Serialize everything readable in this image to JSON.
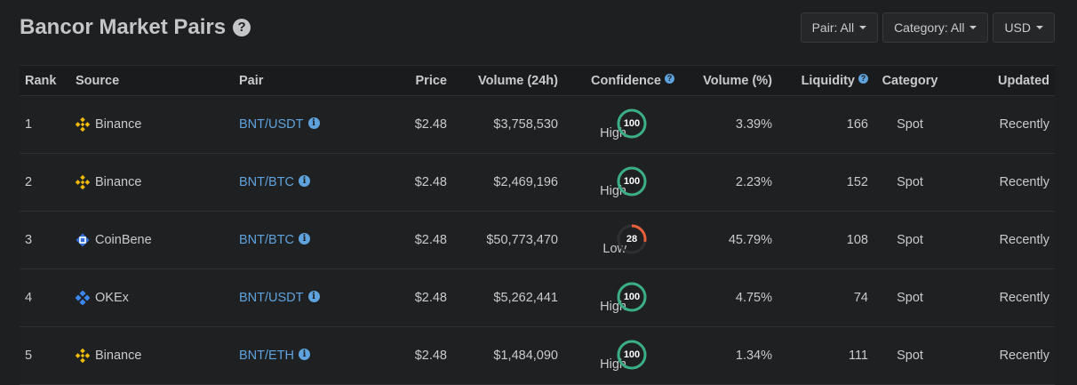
{
  "page": {
    "title": "Bancor Market Pairs",
    "help_glyph": "?"
  },
  "filters": {
    "pair": "Pair: All",
    "category": "Category: All",
    "currency": "USD"
  },
  "columns": {
    "rank": "Rank",
    "source": "Source",
    "pair": "Pair",
    "price": "Price",
    "volume": "Volume (24h)",
    "confidence": "Confidence",
    "volume_pct": "Volume (%)",
    "liquidity": "Liquidity",
    "category": "Category",
    "updated": "Updated"
  },
  "rows": [
    {
      "rank": "1",
      "source": "Binance",
      "source_icon": "binance-icon",
      "pair": "BNT/USDT",
      "price": "$2.48",
      "volume": "$3,758,530",
      "confidence_label": "High",
      "confidence_score": "100",
      "confidence_value": 100,
      "volume_pct": "3.39%",
      "liquidity": "166",
      "category": "Spot",
      "updated": "Recently"
    },
    {
      "rank": "2",
      "source": "Binance",
      "source_icon": "binance-icon",
      "pair": "BNT/BTC",
      "price": "$2.48",
      "volume": "$2,469,196",
      "confidence_label": "High",
      "confidence_score": "100",
      "confidence_value": 100,
      "volume_pct": "2.23%",
      "liquidity": "152",
      "category": "Spot",
      "updated": "Recently"
    },
    {
      "rank": "3",
      "source": "CoinBene",
      "source_icon": "coinbene-icon",
      "pair": "BNT/BTC",
      "price": "$2.48",
      "volume": "$50,773,470",
      "confidence_label": "Low",
      "confidence_score": "28",
      "confidence_value": 28,
      "volume_pct": "45.79%",
      "liquidity": "108",
      "category": "Spot",
      "updated": "Recently"
    },
    {
      "rank": "4",
      "source": "OKEx",
      "source_icon": "okex-icon",
      "pair": "BNT/USDT",
      "price": "$2.48",
      "volume": "$5,262,441",
      "confidence_label": "High",
      "confidence_score": "100",
      "confidence_value": 100,
      "volume_pct": "4.75%",
      "liquidity": "74",
      "category": "Spot",
      "updated": "Recently"
    },
    {
      "rank": "5",
      "source": "Binance",
      "source_icon": "binance-icon",
      "pair": "BNT/ETH",
      "price": "$2.48",
      "volume": "$1,484,090",
      "confidence_label": "High",
      "confidence_score": "100",
      "confidence_value": 100,
      "volume_pct": "1.34%",
      "liquidity": "111",
      "category": "Spot",
      "updated": "Recently"
    }
  ],
  "colors": {
    "background": "#1e1f21",
    "link": "#5ea3dd",
    "confidence_high": "#3aaf85",
    "confidence_low": "#e5603b",
    "binance": "#f0b90b",
    "coinbene": "#2f6fd8",
    "okex": "#3c86f0"
  }
}
